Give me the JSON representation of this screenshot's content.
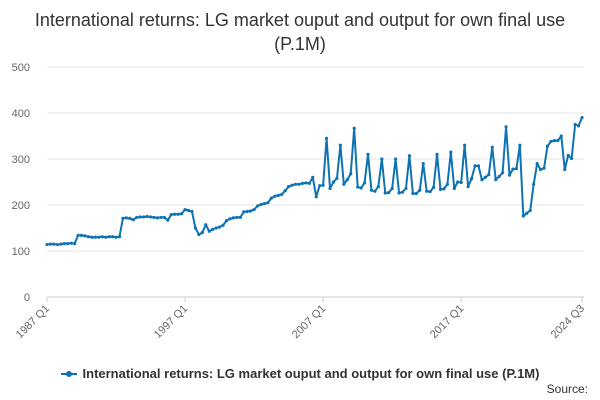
{
  "chart_data": {
    "type": "line",
    "title": "International returns: LG market ouput and output for own final use (P.1M)",
    "xlabel": "",
    "ylabel": "",
    "ylim": [
      0,
      500
    ],
    "yticks": [
      0,
      100,
      200,
      300,
      400,
      500
    ],
    "x_tick_labels": [
      "1987 Q1",
      "1997 Q1",
      "2007 Q1",
      "2017 Q1",
      "2024 Q3"
    ],
    "grid": true,
    "legend_position": "bottom",
    "color": "#0f73b3",
    "series": [
      {
        "name": "International returns: LG market ouput and output for own final use (P.1M)",
        "values": [
          114,
          115,
          115,
          114,
          115,
          116,
          116,
          117,
          116,
          134,
          134,
          133,
          131,
          130,
          130,
          130,
          131,
          130,
          131,
          131,
          130,
          131,
          171,
          172,
          171,
          168,
          173,
          174,
          174,
          175,
          174,
          173,
          172,
          173,
          173,
          167,
          179,
          180,
          180,
          181,
          190,
          188,
          186,
          150,
          136,
          140,
          157,
          143,
          147,
          150,
          152,
          156,
          166,
          170,
          172,
          173,
          173,
          185,
          186,
          187,
          190,
          198,
          201,
          203,
          205,
          215,
          219,
          221,
          223,
          231,
          240,
          243,
          245,
          245,
          247,
          248,
          247,
          260,
          218,
          242,
          243,
          345,
          236,
          250,
          258,
          330,
          245,
          255,
          268,
          367,
          239,
          237,
          248,
          310,
          232,
          230,
          240,
          300,
          226,
          227,
          236,
          300,
          226,
          228,
          236,
          307,
          225,
          225,
          232,
          290,
          230,
          229,
          238,
          310,
          234,
          235,
          245,
          315,
          236,
          250,
          249,
          330,
          240,
          257,
          285,
          285,
          255,
          260,
          266,
          326,
          255,
          262,
          270,
          370,
          265,
          278,
          279,
          330,
          176,
          182,
          188,
          245,
          290,
          277,
          280,
          328,
          338,
          340,
          340,
          350,
          277,
          308,
          301,
          375,
          372,
          390
        ]
      }
    ],
    "legend_label": "International returns: LG market ouput and output for own final use (P.1M)",
    "source_label": "Source:"
  }
}
